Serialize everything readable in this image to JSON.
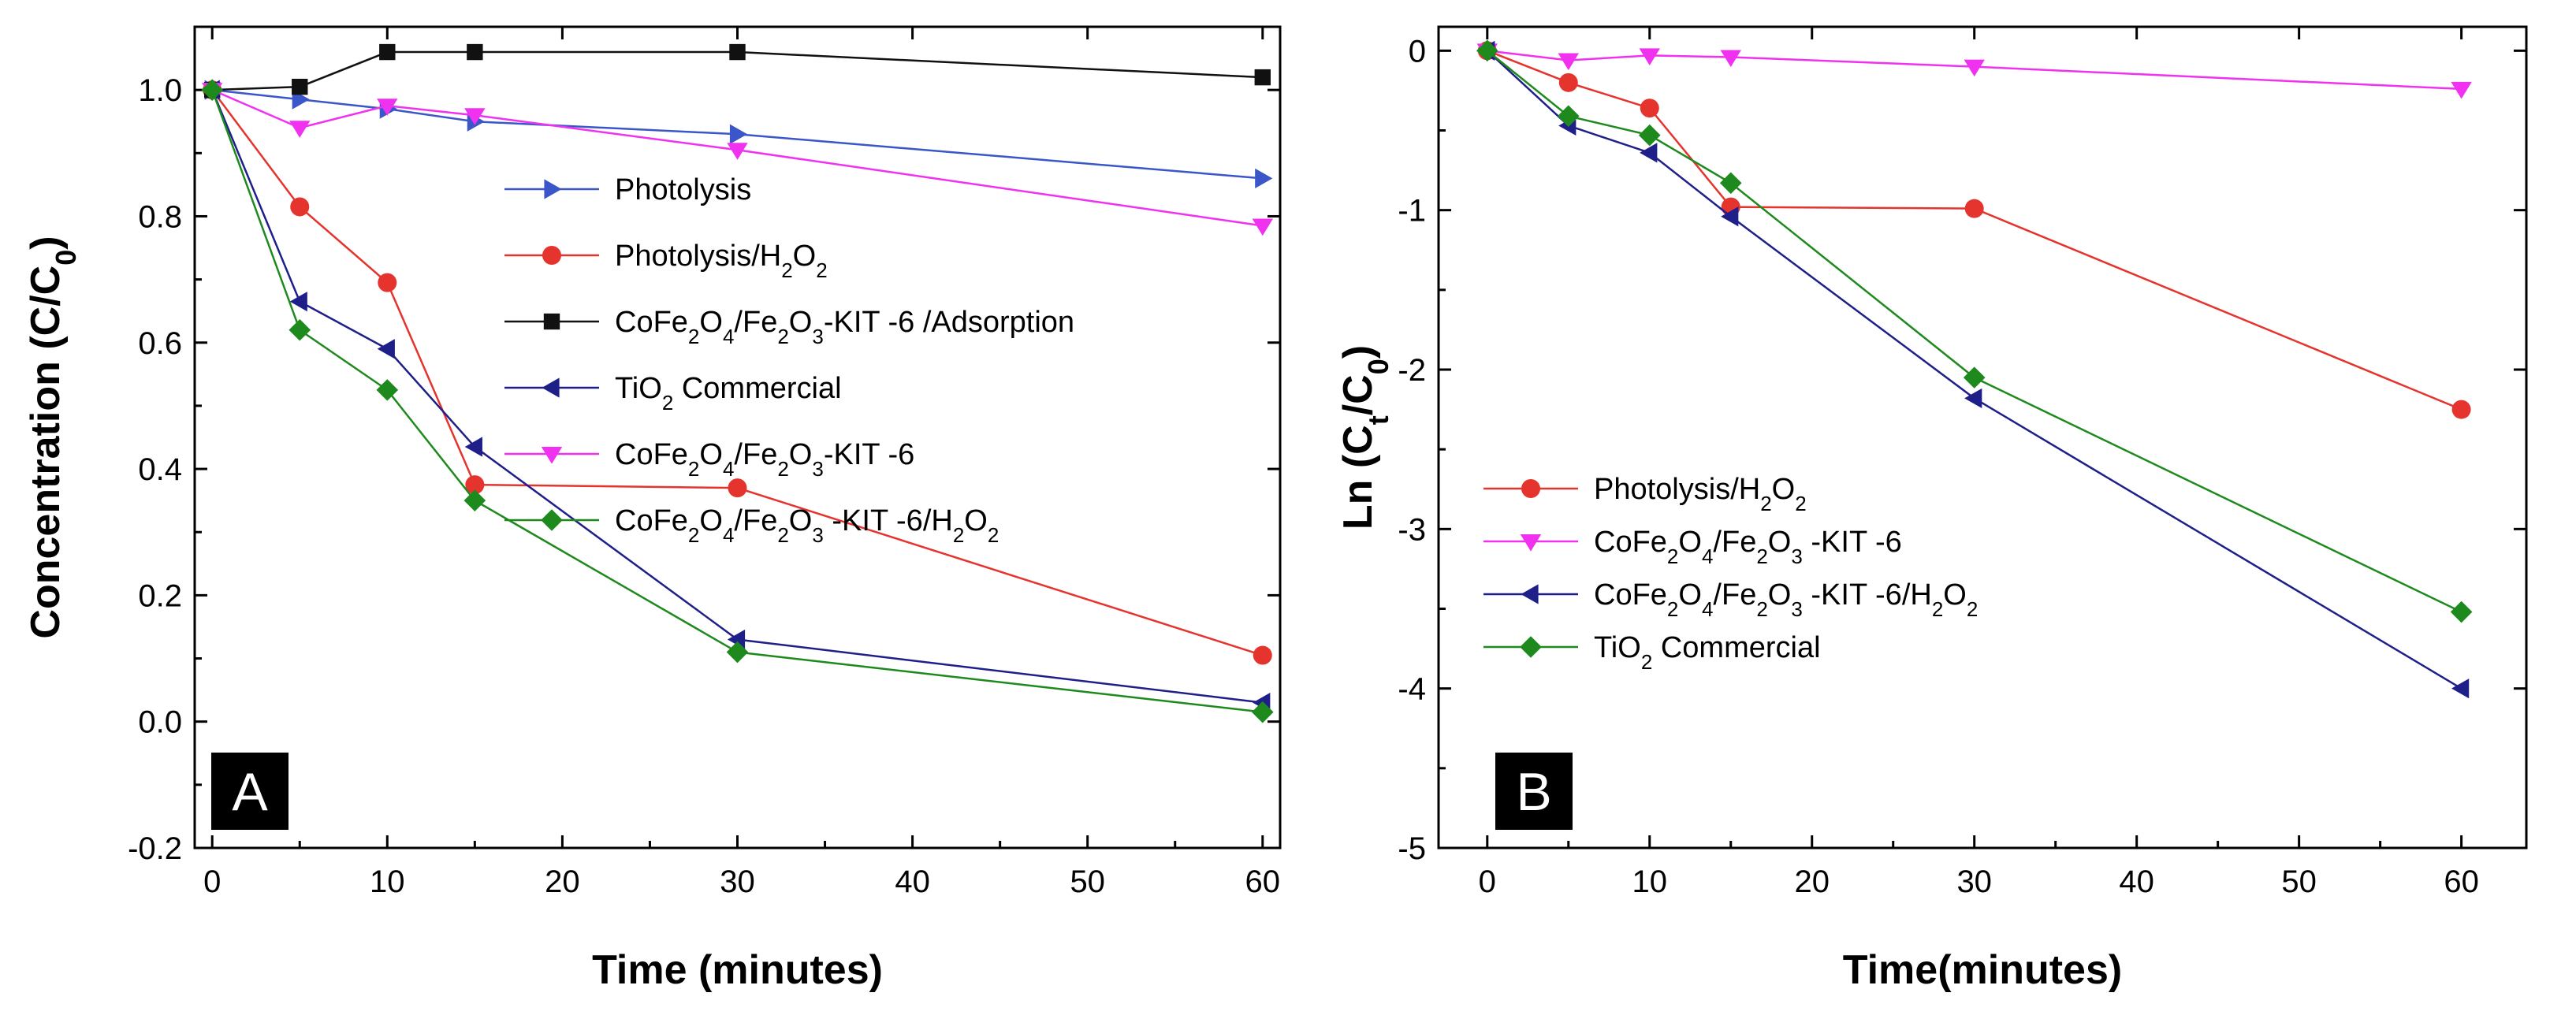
{
  "chart_data": [
    {
      "panel": "A",
      "type": "line",
      "xlabel": "Time (minutes)",
      "ylabel": "Concentration (C/C0)",
      "ylabel_parts": [
        {
          "t": "Concentration (C/C",
          "sub": false
        },
        {
          "t": "0",
          "sub": true
        },
        {
          "t": ")",
          "sub": false
        }
      ],
      "xlim": [
        -1,
        61
      ],
      "ylim": [
        -0.2,
        1.1
      ],
      "xticks": [
        0,
        10,
        20,
        30,
        40,
        50,
        60
      ],
      "yticks": [
        -0.2,
        0.0,
        0.2,
        0.4,
        0.6,
        0.8,
        1.0
      ],
      "ytick_labels": [
        "-0.2",
        "0.0",
        "0.2",
        "0.4",
        "0.6",
        "0.8",
        "1.0"
      ],
      "x": [
        0,
        5,
        10,
        15,
        30,
        60
      ],
      "series": [
        {
          "name": "Photolysis",
          "name_parts": [
            {
              "t": "Photolysis",
              "sub": false
            }
          ],
          "color": "#3a56c9",
          "marker": "triangle-right",
          "values": [
            1.0,
            0.985,
            0.97,
            0.95,
            0.93,
            0.86
          ]
        },
        {
          "name": "Photolysis/H2O2",
          "name_parts": [
            {
              "t": "Photolysis/H",
              "sub": false
            },
            {
              "t": "2",
              "sub": true
            },
            {
              "t": "O",
              "sub": false
            },
            {
              "t": "2",
              "sub": true
            }
          ],
          "color": "#e5342d",
          "marker": "circle",
          "values": [
            1.0,
            0.815,
            0.695,
            0.375,
            0.37,
            0.105
          ]
        },
        {
          "name": "CoFe2O4/Fe2O3-KIT -6 /Adsorption",
          "name_parts": [
            {
              "t": "CoFe",
              "sub": false
            },
            {
              "t": "2",
              "sub": true
            },
            {
              "t": "O",
              "sub": false
            },
            {
              "t": "4",
              "sub": true
            },
            {
              "t": "/Fe",
              "sub": false
            },
            {
              "t": "2",
              "sub": true
            },
            {
              "t": "O",
              "sub": false
            },
            {
              "t": "3",
              "sub": true
            },
            {
              "t": "-KIT -6 /Adsorption",
              "sub": false
            }
          ],
          "color": "#111111",
          "marker": "square",
          "values": [
            1.0,
            1.005,
            1.06,
            1.06,
            1.06,
            1.02
          ]
        },
        {
          "name": "TiO2 Commercial",
          "name_parts": [
            {
              "t": "TiO",
              "sub": false
            },
            {
              "t": "2",
              "sub": true
            },
            {
              "t": " Commercial",
              "sub": false
            }
          ],
          "color": "#1f1f8a",
          "marker": "triangle-left",
          "values": [
            1.0,
            0.665,
            0.59,
            0.435,
            0.13,
            0.03
          ]
        },
        {
          "name": "CoFe2O4/Fe2O3-KIT -6",
          "name_parts": [
            {
              "t": "CoFe",
              "sub": false
            },
            {
              "t": "2",
              "sub": true
            },
            {
              "t": "O",
              "sub": false
            },
            {
              "t": "4",
              "sub": true
            },
            {
              "t": "/Fe",
              "sub": false
            },
            {
              "t": "2",
              "sub": true
            },
            {
              "t": "O",
              "sub": false
            },
            {
              "t": "3",
              "sub": true
            },
            {
              "t": "-KIT -6",
              "sub": false
            }
          ],
          "color": "#f032f0",
          "marker": "triangle-down",
          "values": [
            1.0,
            0.94,
            0.975,
            0.96,
            0.905,
            0.785
          ]
        },
        {
          "name": "CoFe2O4/Fe2O3 -KIT -6/H2O2",
          "name_parts": [
            {
              "t": "CoFe",
              "sub": false
            },
            {
              "t": "2",
              "sub": true
            },
            {
              "t": "O",
              "sub": false
            },
            {
              "t": "4",
              "sub": true
            },
            {
              "t": "/Fe",
              "sub": false
            },
            {
              "t": "2",
              "sub": true
            },
            {
              "t": "O",
              "sub": false
            },
            {
              "t": "3",
              "sub": true
            },
            {
              "t": " -KIT -6/H",
              "sub": false
            },
            {
              "t": "2",
              "sub": true
            },
            {
              "t": "O",
              "sub": false
            },
            {
              "t": "2",
              "sub": true
            }
          ],
          "color": "#1e8a1e",
          "marker": "diamond",
          "values": [
            1.0,
            0.62,
            0.525,
            0.35,
            0.11,
            0.015
          ]
        }
      ],
      "legend": "center-right",
      "grid": false
    },
    {
      "panel": "B",
      "type": "line",
      "xlabel": "Time(minutes)",
      "ylabel": "Ln (Ct/C0)",
      "ylabel_parts": [
        {
          "t": "Ln (C",
          "sub": false
        },
        {
          "t": "t",
          "sub": true
        },
        {
          "t": "/C",
          "sub": false
        },
        {
          "t": "0",
          "sub": true
        },
        {
          "t": ")",
          "sub": false
        }
      ],
      "xlim": [
        -3,
        64
      ],
      "ylim": [
        -5,
        0.15
      ],
      "xticks": [
        0,
        10,
        20,
        30,
        40,
        50,
        60
      ],
      "yticks": [
        -5,
        -4,
        -3,
        -2,
        -1,
        0
      ],
      "ytick_labels": [
        "-5",
        "-4",
        "-3",
        "-2",
        "-1",
        "0"
      ],
      "x": [
        0,
        5,
        10,
        15,
        30,
        60
      ],
      "series": [
        {
          "name": "Photolysis/H2O2",
          "name_parts": [
            {
              "t": "Photolysis/H",
              "sub": false
            },
            {
              "t": "2",
              "sub": true
            },
            {
              "t": "O",
              "sub": false
            },
            {
              "t": "2",
              "sub": true
            }
          ],
          "color": "#e5342d",
          "marker": "circle",
          "values": [
            0,
            -0.2,
            -0.36,
            -0.98,
            -0.99,
            -2.25
          ]
        },
        {
          "name": "CoFe2O4/Fe2O3 -KIT -6",
          "name_parts": [
            {
              "t": "CoFe",
              "sub": false
            },
            {
              "t": "2",
              "sub": true
            },
            {
              "t": "O",
              "sub": false
            },
            {
              "t": "4",
              "sub": true
            },
            {
              "t": "/Fe",
              "sub": false
            },
            {
              "t": "2",
              "sub": true
            },
            {
              "t": "O",
              "sub": false
            },
            {
              "t": "3",
              "sub": true
            },
            {
              "t": " -KIT -6",
              "sub": false
            }
          ],
          "color": "#f032f0",
          "marker": "triangle-down",
          "values": [
            0,
            -0.06,
            -0.03,
            -0.04,
            -0.1,
            -0.24
          ]
        },
        {
          "name": "CoFe2O4/Fe2O3 -KIT -6/H2O2",
          "name_parts": [
            {
              "t": "CoFe",
              "sub": false
            },
            {
              "t": "2",
              "sub": true
            },
            {
              "t": "O",
              "sub": false
            },
            {
              "t": "4",
              "sub": true
            },
            {
              "t": "/Fe",
              "sub": false
            },
            {
              "t": "2",
              "sub": true
            },
            {
              "t": "O",
              "sub": false
            },
            {
              "t": "3",
              "sub": true
            },
            {
              "t": " -KIT -6/H",
              "sub": false
            },
            {
              "t": "2",
              "sub": true
            },
            {
              "t": "O",
              "sub": false
            },
            {
              "t": "2",
              "sub": true
            }
          ],
          "color": "#1f1f8a",
          "marker": "triangle-left",
          "values": [
            0,
            -0.47,
            -0.64,
            -1.04,
            -2.18,
            -4.0
          ]
        },
        {
          "name": "TiO2 Commercial",
          "name_parts": [
            {
              "t": "TiO",
              "sub": false
            },
            {
              "t": "2",
              "sub": true
            },
            {
              "t": " Commercial",
              "sub": false
            }
          ],
          "color": "#1e8a1e",
          "marker": "diamond",
          "values": [
            0,
            -0.41,
            -0.53,
            -0.83,
            -2.05,
            -3.52
          ]
        }
      ],
      "legend": "center-left",
      "grid": false
    }
  ]
}
